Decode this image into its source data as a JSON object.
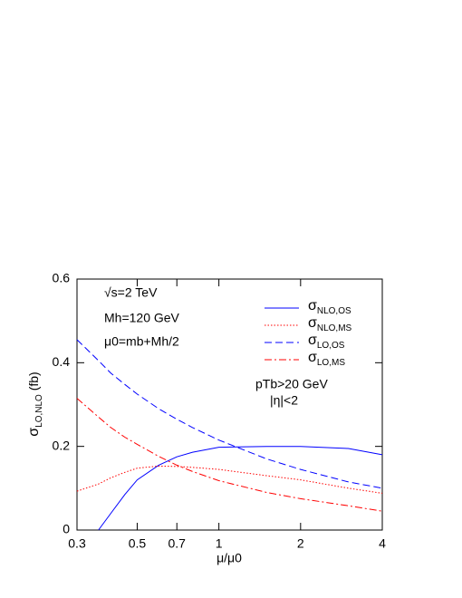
{
  "chart_data": {
    "type": "line",
    "x_label": "μ/μ0",
    "y_label": "σLO,NLO (fb)",
    "x_scale": "log",
    "x": [
      0.3,
      0.36,
      0.4,
      0.45,
      0.5,
      0.6,
      0.7,
      0.8,
      1,
      1.5,
      2,
      3,
      4
    ],
    "series": [
      {
        "name": "σNLO,OS",
        "color": "#0000ff",
        "style": "solid",
        "values": [
          null,
          0,
          0.04,
          0.085,
          0.12,
          0.155,
          0.175,
          0.186,
          0.198,
          0.2,
          0.2,
          0.195,
          0.18
        ]
      },
      {
        "name": "σNLO,MS",
        "color": "#ff0000",
        "style": "dotted",
        "values": [
          0.093,
          0.11,
          0.125,
          0.138,
          0.148,
          0.153,
          0.152,
          0.15,
          0.145,
          0.13,
          0.12,
          0.1,
          0.088
        ]
      },
      {
        "name": "σLO,OS",
        "color": "#0000ff",
        "style": "dashed",
        "values": [
          0.455,
          0.405,
          0.375,
          0.348,
          0.325,
          0.29,
          0.265,
          0.245,
          0.215,
          0.17,
          0.145,
          0.115,
          0.1
        ]
      },
      {
        "name": "σLO,MS",
        "color": "#ff0000",
        "style": "dashdot",
        "values": [
          0.315,
          0.27,
          0.245,
          0.222,
          0.205,
          0.176,
          0.155,
          0.14,
          0.118,
          0.09,
          0.075,
          0.058,
          0.045
        ]
      }
    ],
    "xlim": [
      0.3,
      4
    ],
    "xticks": [
      0.3,
      0.5,
      0.7,
      1,
      2,
      4
    ],
    "ylim": [
      0,
      0.6
    ],
    "yticks": [
      0,
      0.2,
      0.4,
      0.6
    ],
    "annotations": [
      "√s=2 TeV",
      "Mh=120 GeV",
      "μ0=mb+Mh/2",
      "pTb>20 GeV",
      "|η|<2"
    ],
    "legend": "upper right"
  }
}
